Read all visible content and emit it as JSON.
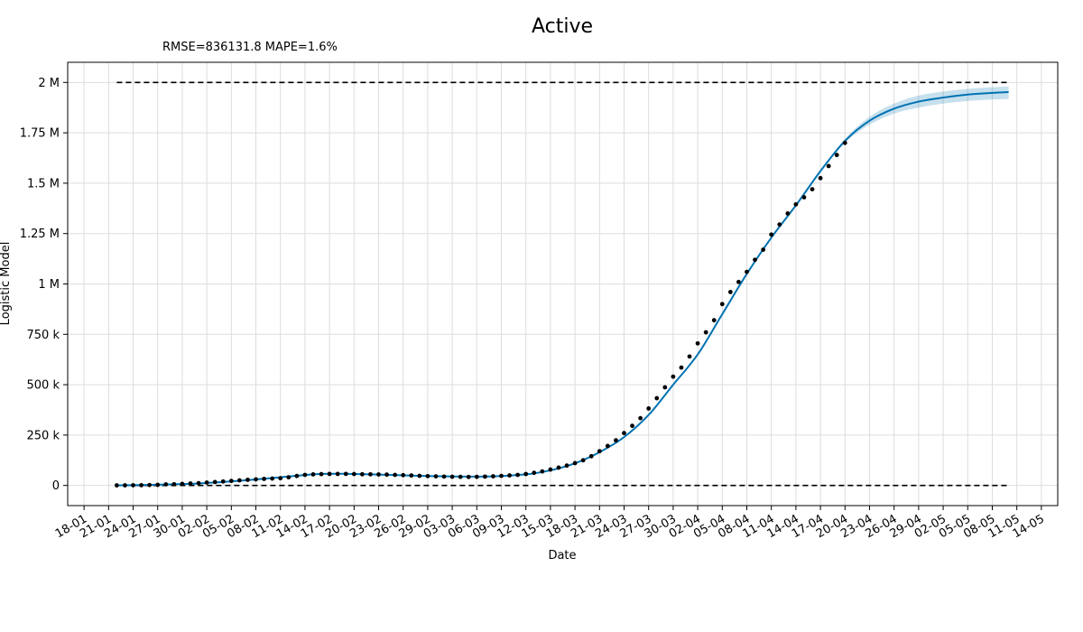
{
  "chart_data": {
    "type": "line",
    "title": "Active",
    "subtitle": "RMSE=836131.8 MAPE=1.6%",
    "xlabel": "Date",
    "ylabel": "Logistic Model",
    "ylim": [
      -100000,
      2100000
    ],
    "grid": true,
    "x_tick_labels": [
      "18-01",
      "21-01",
      "24-01",
      "27-01",
      "30-01",
      "02-02",
      "05-02",
      "08-02",
      "11-02",
      "14-02",
      "17-02",
      "20-02",
      "23-02",
      "26-02",
      "29-02",
      "03-03",
      "06-03",
      "09-03",
      "12-03",
      "15-03",
      "18-03",
      "21-03",
      "24-03",
      "27-03",
      "30-03",
      "02-04",
      "05-04",
      "08-04",
      "11-04",
      "14-04",
      "17-04",
      "20-04",
      "23-04",
      "26-04",
      "29-04",
      "02-05",
      "05-05",
      "08-05",
      "11-05",
      "14-05"
    ],
    "x_range": [
      "2020-01-16",
      "2020-05-16"
    ],
    "y_ticks": [
      {
        "value": 0,
        "label": "0"
      },
      {
        "value": 250000,
        "label": "250 k"
      },
      {
        "value": 500000,
        "label": "500 k"
      },
      {
        "value": 750000,
        "label": "750 k"
      },
      {
        "value": 1000000,
        "label": "1 M"
      },
      {
        "value": 1250000,
        "label": "1.25 M"
      },
      {
        "value": 1500000,
        "label": "1.5 M"
      },
      {
        "value": 1750000,
        "label": "1.75 M"
      },
      {
        "value": 2000000,
        "label": "2 M"
      }
    ],
    "capacity_lines": [
      {
        "value": 2000000,
        "x": [
          "2020-01-22",
          "2020-05-10"
        ]
      },
      {
        "value": 0,
        "x": [
          "2020-01-22",
          "2020-05-10"
        ]
      }
    ],
    "observed": {
      "x": [
        "2020-01-22",
        "2020-01-23",
        "2020-01-24",
        "2020-01-25",
        "2020-01-26",
        "2020-01-27",
        "2020-01-28",
        "2020-01-29",
        "2020-01-30",
        "2020-01-31",
        "2020-02-01",
        "2020-02-02",
        "2020-02-03",
        "2020-02-04",
        "2020-02-05",
        "2020-02-06",
        "2020-02-07",
        "2020-02-08",
        "2020-02-09",
        "2020-02-10",
        "2020-02-11",
        "2020-02-12",
        "2020-02-13",
        "2020-02-14",
        "2020-02-15",
        "2020-02-16",
        "2020-02-17",
        "2020-02-18",
        "2020-02-19",
        "2020-02-20",
        "2020-02-21",
        "2020-02-22",
        "2020-02-23",
        "2020-02-24",
        "2020-02-25",
        "2020-02-26",
        "2020-02-27",
        "2020-02-28",
        "2020-02-29",
        "2020-03-01",
        "2020-03-02",
        "2020-03-03",
        "2020-03-04",
        "2020-03-05",
        "2020-03-06",
        "2020-03-07",
        "2020-03-08",
        "2020-03-09",
        "2020-03-10",
        "2020-03-11",
        "2020-03-12",
        "2020-03-13",
        "2020-03-14",
        "2020-03-15",
        "2020-03-16",
        "2020-03-17",
        "2020-03-18",
        "2020-03-19",
        "2020-03-20",
        "2020-03-21",
        "2020-03-22",
        "2020-03-23",
        "2020-03-24",
        "2020-03-25",
        "2020-03-26",
        "2020-03-27",
        "2020-03-28",
        "2020-03-29",
        "2020-03-30",
        "2020-03-31",
        "2020-04-01",
        "2020-04-02",
        "2020-04-03",
        "2020-04-04",
        "2020-04-05",
        "2020-04-06",
        "2020-04-07",
        "2020-04-08",
        "2020-04-09",
        "2020-04-10",
        "2020-04-11",
        "2020-04-12",
        "2020-04-13",
        "2020-04-14",
        "2020-04-15",
        "2020-04-16",
        "2020-04-17",
        "2020-04-18",
        "2020-04-19",
        "2020-04-20"
      ],
      "y": [
        500,
        600,
        900,
        1300,
        2000,
        2800,
        5400,
        5900,
        7800,
        9800,
        11400,
        14400,
        17000,
        19600,
        22600,
        25300,
        28000,
        30300,
        32600,
        34300,
        35800,
        40600,
        47000,
        52500,
        54800,
        56100,
        57000,
        57200,
        57400,
        56700,
        55500,
        55300,
        54600,
        53800,
        52500,
        51100,
        49500,
        47800,
        46300,
        45200,
        44000,
        43200,
        42700,
        42200,
        42800,
        43900,
        45500,
        47400,
        49800,
        52500,
        56800,
        62600,
        69700,
        79000,
        88500,
        98600,
        110800,
        124800,
        145000,
        170000,
        196000,
        224000,
        260000,
        296000,
        334000,
        382000,
        433000,
        487000,
        540000,
        585000,
        640000,
        705000,
        760000,
        820000,
        900000,
        960000,
        1010000,
        1060000,
        1120000,
        1170000,
        1245000,
        1295000,
        1350000,
        1395000,
        1430000,
        1470000,
        1525000,
        1585000,
        1640000,
        1700000
      ]
    },
    "series": [
      {
        "x": [
          "2020-01-22",
          "2020-02-01",
          "2020-02-08",
          "2020-02-15",
          "2020-02-18",
          "2020-02-22",
          "2020-02-29",
          "2020-03-07",
          "2020-03-12",
          "2020-03-15",
          "2020-03-18",
          "2020-03-21",
          "2020-03-24",
          "2020-03-27",
          "2020-03-30",
          "2020-04-02",
          "2020-04-05",
          "2020-04-08",
          "2020-04-11",
          "2020-04-14",
          "2020-04-17",
          "2020-04-20",
          "2020-04-23",
          "2020-04-26",
          "2020-04-29",
          "2020-05-02",
          "2020-05-05",
          "2020-05-08",
          "2020-05-10"
        ],
        "y": [
          0,
          10000,
          30000,
          55000,
          58000,
          55000,
          47000,
          44000,
          55000,
          75000,
          110000,
          165000,
          240000,
          350000,
          500000,
          650000,
          850000,
          1050000,
          1230000,
          1390000,
          1560000,
          1710000,
          1810000,
          1870000,
          1905000,
          1925000,
          1940000,
          1948000,
          1952000
        ],
        "band_lower": [
          0,
          10000,
          30000,
          55000,
          58000,
          55000,
          47000,
          44000,
          55000,
          75000,
          110000,
          165000,
          240000,
          350000,
          500000,
          650000,
          850000,
          1050000,
          1230000,
          1390000,
          1555000,
          1700000,
          1790000,
          1845000,
          1875000,
          1895000,
          1908000,
          1915000,
          1918000
        ],
        "band_upper": [
          0,
          10000,
          30000,
          55000,
          58000,
          55000,
          47000,
          44000,
          55000,
          75000,
          110000,
          165000,
          240000,
          350000,
          500000,
          650000,
          850000,
          1050000,
          1230000,
          1390000,
          1565000,
          1720000,
          1830000,
          1895000,
          1935000,
          1955000,
          1968000,
          1976000,
          1980000
        ],
        "color": "#0072b2",
        "band_color": "#0072b2"
      }
    ]
  }
}
